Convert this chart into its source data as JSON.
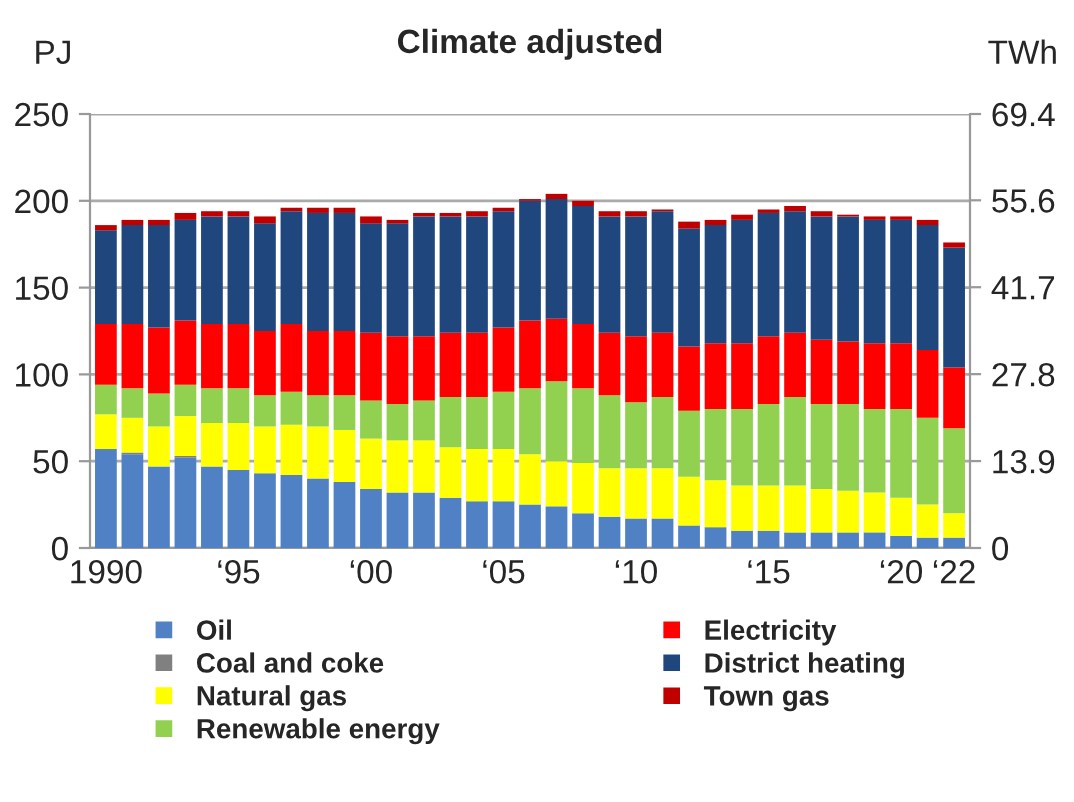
{
  "chart_data": {
    "type": "bar",
    "title": "Climate adjusted",
    "ylabel": "PJ",
    "y2label": "TWh",
    "stacked": true,
    "categories": [
      "1990",
      null,
      null,
      null,
      null,
      "‘95",
      null,
      null,
      null,
      null,
      "‘00",
      null,
      null,
      null,
      null,
      "‘05",
      null,
      null,
      null,
      null,
      "‘10",
      null,
      null,
      null,
      null,
      "‘15",
      null,
      null,
      null,
      null,
      "‘20",
      null,
      "‘22"
    ],
    "series": [
      {
        "name": "Oil",
        "color": "#4f81c4",
        "values": [
          57,
          54,
          47,
          52,
          47,
          45,
          43,
          42,
          40,
          38,
          34,
          32,
          32,
          29,
          27,
          27,
          25,
          24,
          20,
          18,
          17,
          17,
          13,
          12,
          10,
          10,
          9,
          9,
          9,
          9,
          7,
          6,
          6
        ]
      },
      {
        "name": "Coal and coke",
        "color": "#808080",
        "values": [
          0,
          1,
          0,
          1,
          0,
          0,
          0,
          0,
          0,
          0,
          0,
          0,
          0,
          0,
          0,
          0,
          0,
          0,
          0,
          0,
          0,
          0,
          0,
          0,
          0,
          0,
          0,
          0,
          0,
          0,
          0,
          0,
          0
        ]
      },
      {
        "name": "Natural gas",
        "color": "#ffff00",
        "values": [
          20,
          20,
          23,
          23,
          25,
          27,
          27,
          29,
          30,
          30,
          29,
          30,
          30,
          29,
          30,
          30,
          29,
          26,
          29,
          28,
          29,
          29,
          28,
          27,
          26,
          26,
          27,
          25,
          24,
          23,
          22,
          19,
          14
        ]
      },
      {
        "name": "Renewable energy",
        "color": "#92d050",
        "values": [
          17,
          17,
          19,
          18,
          20,
          20,
          18,
          19,
          18,
          20,
          22,
          21,
          23,
          29,
          30,
          33,
          38,
          46,
          43,
          42,
          38,
          41,
          38,
          41,
          44,
          47,
          51,
          49,
          50,
          48,
          51,
          50,
          49
        ]
      },
      {
        "name": "Electricity",
        "color": "#ff0000",
        "values": [
          35,
          37,
          38,
          37,
          37,
          37,
          37,
          39,
          37,
          37,
          39,
          39,
          37,
          37,
          37,
          37,
          39,
          36,
          37,
          36,
          38,
          37,
          37,
          38,
          38,
          39,
          37,
          37,
          36,
          38,
          38,
          39,
          35
        ]
      },
      {
        "name": "District heating",
        "color": "#1f477d",
        "values": [
          54,
          57,
          59,
          58,
          62,
          62,
          62,
          65,
          68,
          68,
          63,
          65,
          69,
          67,
          67,
          67,
          69,
          69,
          68,
          67,
          69,
          70,
          68,
          68,
          71,
          71,
          70,
          71,
          72,
          71,
          71,
          72,
          69
        ]
      },
      {
        "name": "Town gas",
        "color": "#c00000",
        "values": [
          3,
          3,
          3,
          4,
          3,
          3,
          4,
          2,
          3,
          3,
          4,
          2,
          2,
          2,
          3,
          2,
          1,
          3,
          3,
          3,
          3,
          1,
          4,
          3,
          3,
          2,
          3,
          3,
          1,
          2,
          2,
          3,
          3
        ]
      }
    ],
    "ylim": [
      0,
      250
    ],
    "yticks": [
      0,
      50,
      100,
      150,
      200,
      250
    ],
    "y2lim": [
      0,
      69.4
    ],
    "y2ticks": [
      0,
      13.9,
      27.8,
      41.7,
      55.6,
      69.4
    ],
    "grid": "y",
    "legend": "bottom"
  }
}
